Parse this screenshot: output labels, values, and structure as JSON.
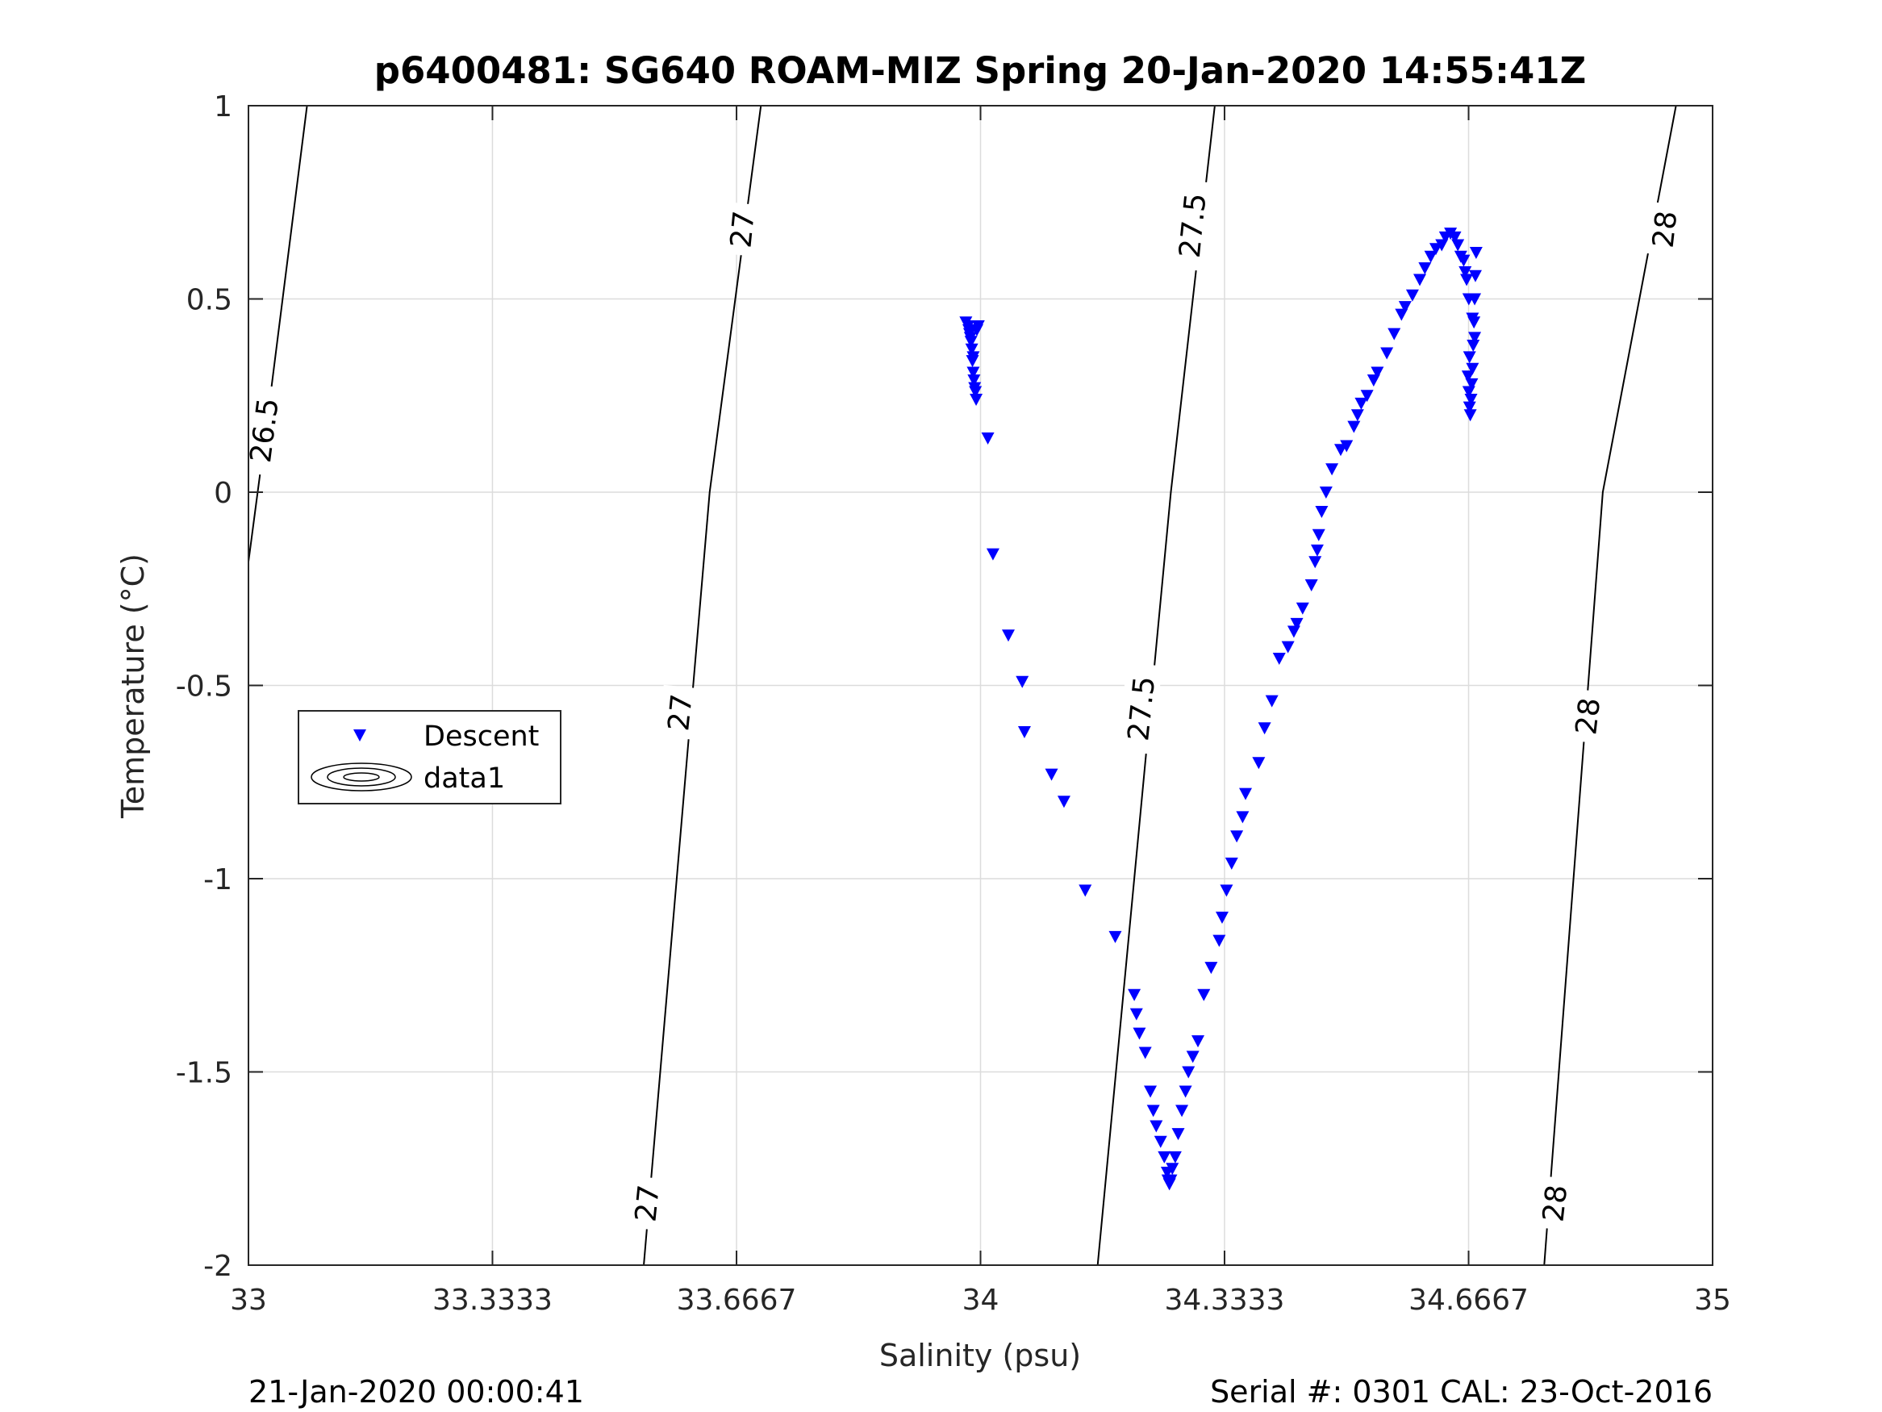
{
  "chart_data": {
    "type": "scatter",
    "title": "p6400481: SG640 ROAM-MIZ Spring 20-Jan-2020 14:55:41Z",
    "xlabel": "Salinity (psu)",
    "ylabel": "Temperature (°C)",
    "xlim": [
      33,
      35
    ],
    "ylim": [
      -2,
      1
    ],
    "xticks": [
      33,
      33.3333,
      33.6667,
      34,
      34.3333,
      34.6667,
      35
    ],
    "xtick_labels": [
      "33",
      "33.3333",
      "33.6667",
      "34",
      "34.3333",
      "34.6667",
      "35"
    ],
    "yticks": [
      -2,
      -1.5,
      -1,
      -0.5,
      0,
      0.5,
      1
    ],
    "ytick_labels": [
      "-2",
      "-1.5",
      "-1",
      "-0.5",
      "0",
      "0.5",
      "1"
    ],
    "grid": true,
    "legend": {
      "placement": "left",
      "entries": [
        "Descent",
        "data1"
      ]
    },
    "marker_color": "#0000ff",
    "contour_color": "#000000",
    "contours": [
      {
        "level": "26.5",
        "x": [
          33.0,
          33.03,
          33.08
        ],
        "y": [
          -0.18,
          0.25,
          1.0
        ]
      },
      {
        "level": "27",
        "x": [
          33.54,
          33.63,
          33.7
        ],
        "y": [
          -2.0,
          0.0,
          1.0
        ]
      },
      {
        "level": "27.5",
        "x": [
          34.16,
          34.26,
          34.32
        ],
        "y": [
          -2.0,
          0.0,
          1.0
        ]
      },
      {
        "level": "28",
        "x": [
          34.77,
          34.85,
          34.95
        ],
        "y": [
          -2.0,
          0.0,
          1.0
        ]
      }
    ],
    "contour_labels": [
      {
        "text": "26.5",
        "x": 33.022,
        "y": 0.16
      },
      {
        "text": "27",
        "x": 33.675,
        "y": 0.68
      },
      {
        "text": "27",
        "x": 33.59,
        "y": -0.57
      },
      {
        "text": "27",
        "x": 33.545,
        "y": -1.84
      },
      {
        "text": "27.5",
        "x": 34.29,
        "y": 0.69
      },
      {
        "text": "27.5",
        "x": 34.22,
        "y": -0.56
      },
      {
        "text": "28",
        "x": 34.935,
        "y": 0.68
      },
      {
        "text": "28",
        "x": 34.83,
        "y": -0.58
      },
      {
        "text": "28",
        "x": 34.785,
        "y": -1.84
      }
    ],
    "series": [
      {
        "name": "Descent",
        "x": [
          33.98,
          33.983,
          33.985,
          33.987,
          33.988,
          33.99,
          33.984,
          33.986,
          33.989,
          33.99,
          33.991,
          33.992,
          33.993,
          33.994,
          33.995,
          33.997,
          34.01,
          34.017,
          34.038,
          34.057,
          34.06,
          34.097,
          34.114,
          34.143,
          34.184,
          34.21,
          34.213,
          34.217,
          34.225,
          34.232,
          34.236,
          34.24,
          34.246,
          34.251,
          34.255,
          34.256,
          34.258,
          34.26,
          34.262,
          34.266,
          34.27,
          34.275,
          34.28,
          34.284,
          34.29,
          34.297,
          34.305,
          34.315,
          34.326,
          34.33,
          34.336,
          34.343,
          34.35,
          34.358,
          34.362,
          34.38,
          34.388,
          34.398,
          34.408,
          34.42,
          34.428,
          34.432,
          34.44,
          34.452,
          34.457,
          34.46,
          34.462,
          34.466,
          34.472,
          34.48,
          34.492,
          34.5,
          34.51,
          34.515,
          34.52,
          34.528,
          34.537,
          34.542,
          34.555,
          34.565,
          34.575,
          34.58,
          34.59,
          34.6,
          34.607,
          34.615,
          34.622,
          34.63,
          34.635,
          34.642,
          34.648,
          34.652,
          34.656,
          34.66,
          34.662,
          34.664,
          34.667,
          34.672,
          34.675,
          34.668,
          34.666,
          34.667,
          34.668,
          34.669,
          34.67,
          34.671,
          34.672,
          34.673,
          34.674,
          34.675,
          34.676,
          34.677
        ],
        "y": [
          0.44,
          0.43,
          0.41,
          0.39,
          0.37,
          0.35,
          0.42,
          0.4,
          0.34,
          0.31,
          0.29,
          0.27,
          0.26,
          0.24,
          0.42,
          0.43,
          0.14,
          -0.16,
          -0.37,
          -0.49,
          -0.62,
          -0.73,
          -0.8,
          -1.03,
          -1.15,
          -1.3,
          -1.35,
          -1.4,
          -1.45,
          -1.55,
          -1.6,
          -1.64,
          -1.68,
          -1.72,
          -1.76,
          -1.78,
          -1.79,
          -1.78,
          -1.75,
          -1.72,
          -1.66,
          -1.6,
          -1.55,
          -1.5,
          -1.46,
          -1.42,
          -1.3,
          -1.23,
          -1.16,
          -1.1,
          -1.03,
          -0.96,
          -0.89,
          -0.84,
          -0.78,
          -0.7,
          -0.61,
          -0.54,
          -0.43,
          -0.4,
          -0.36,
          -0.34,
          -0.3,
          -0.24,
          -0.18,
          -0.15,
          -0.11,
          -0.05,
          0.0,
          0.06,
          0.11,
          0.12,
          0.17,
          0.2,
          0.23,
          0.25,
          0.29,
          0.31,
          0.36,
          0.41,
          0.46,
          0.48,
          0.51,
          0.55,
          0.58,
          0.61,
          0.63,
          0.64,
          0.66,
          0.67,
          0.66,
          0.64,
          0.61,
          0.6,
          0.57,
          0.55,
          0.5,
          0.45,
          0.4,
          0.35,
          0.3,
          0.26,
          0.22,
          0.2,
          0.24,
          0.28,
          0.32,
          0.38,
          0.44,
          0.5,
          0.56,
          0.62
        ]
      }
    ]
  },
  "footer": {
    "left": "21-Jan-2020 00:00:41",
    "right": "Serial #: 0301  CAL: 23-Oct-2016"
  }
}
